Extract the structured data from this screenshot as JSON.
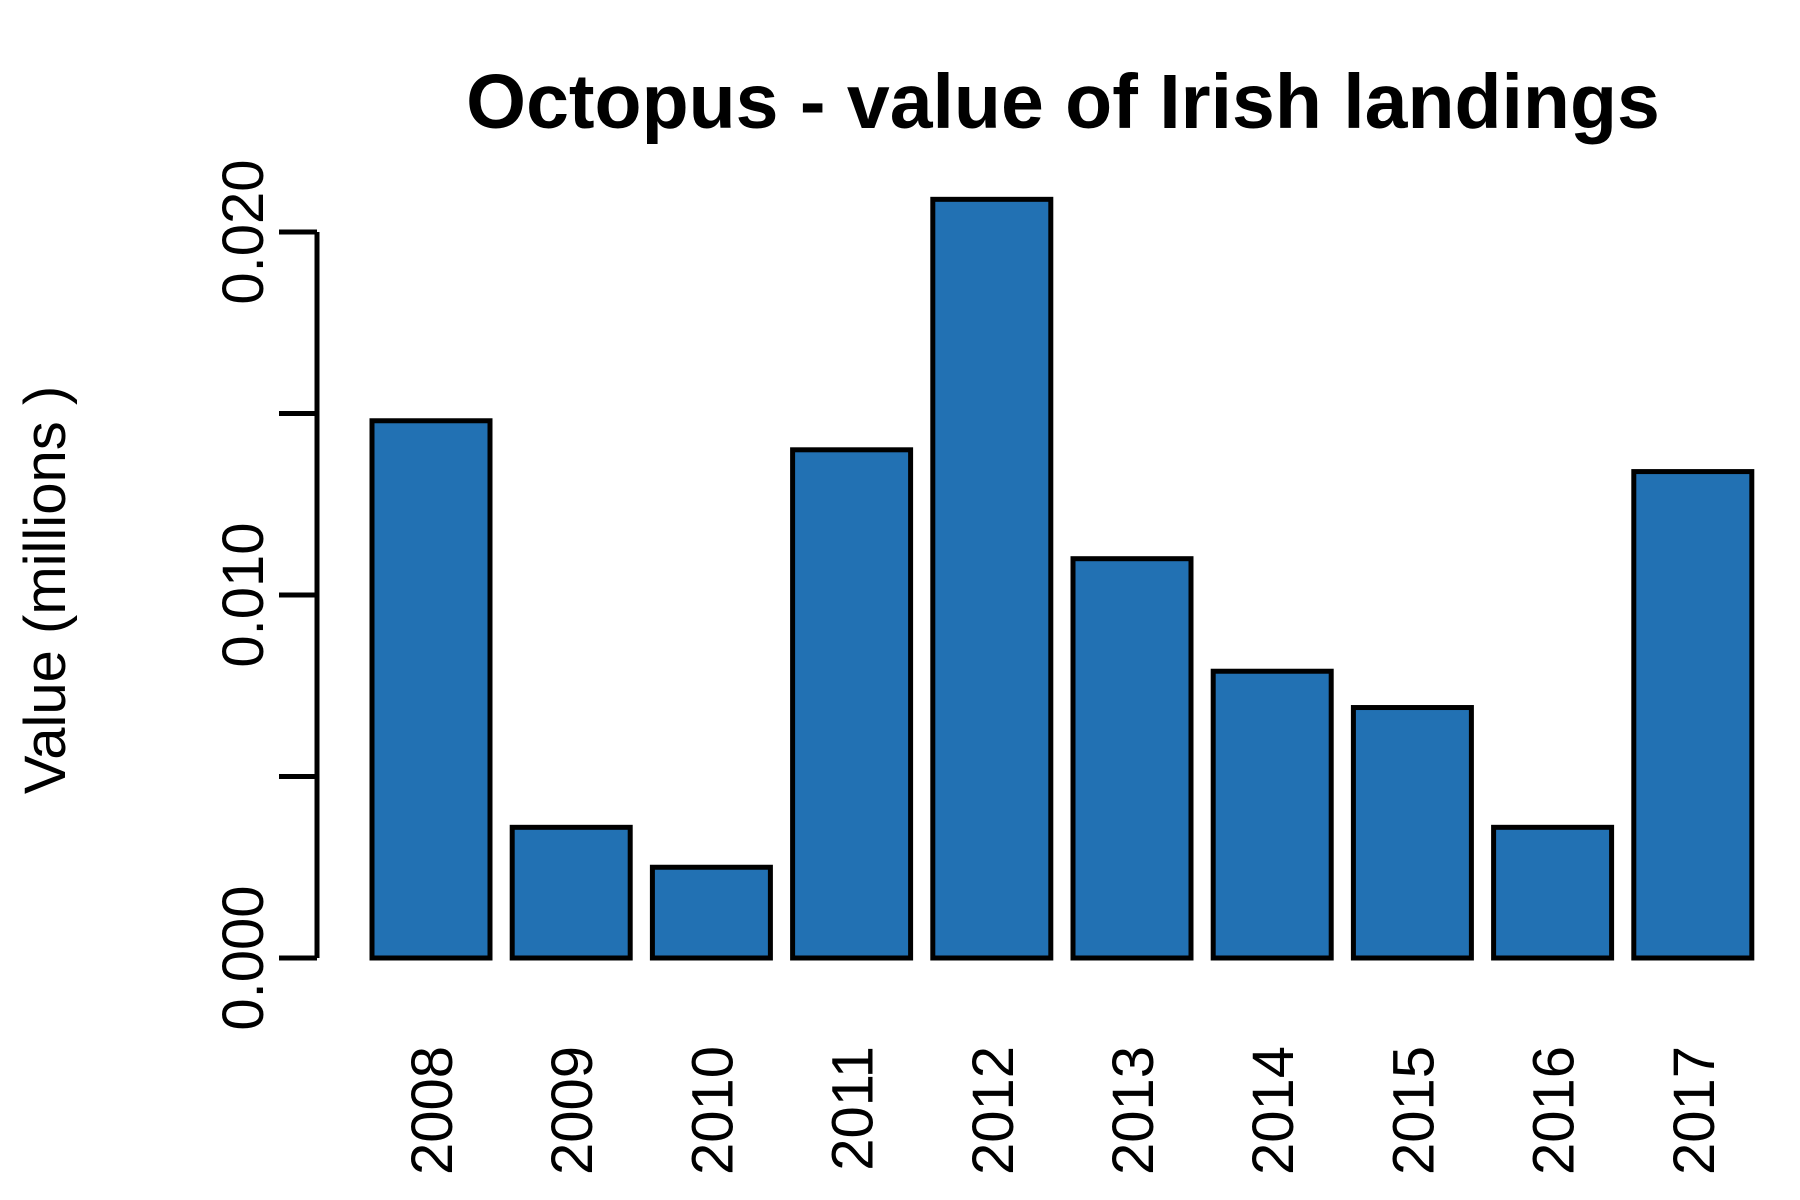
{
  "chart_data": {
    "type": "bar",
    "title": "Octopus - value of Irish landings",
    "xlabel": "",
    "ylabel": "Value (millions )",
    "categories": [
      "2008",
      "2009",
      "2010",
      "2011",
      "2012",
      "2013",
      "2014",
      "2015",
      "2016",
      "2017"
    ],
    "values": [
      0.0148,
      0.0036,
      0.0025,
      0.014,
      0.0209,
      0.011,
      0.0079,
      0.0069,
      0.0036,
      0.0134
    ],
    "ylim": [
      0,
      0.02
    ],
    "yticks": [
      0.0,
      0.005,
      0.01,
      0.015,
      0.02
    ],
    "ytick_labels": [
      "0.000",
      "",
      "0.010",
      "",
      "0.020"
    ],
    "bar_color": "#2271b3",
    "grid": false,
    "legend": "none"
  }
}
